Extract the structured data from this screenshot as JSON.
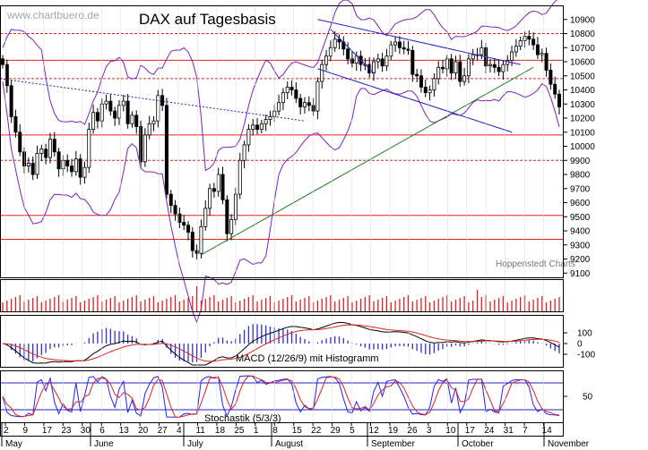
{
  "chart_data": {
    "type": "candlestick",
    "title": "DAX auf Tagesbasis",
    "watermark": "www.chartbuero.de",
    "source": "Hoppenstedt Charts",
    "macd_label": "MACD (12/26/9) mit Histogramm",
    "stoch_label": "Stochastik (5/3/3)",
    "ylim": [
      9070,
      11000
    ],
    "y_ticks": [
      9100,
      9200,
      9300,
      9400,
      9500,
      9600,
      9700,
      9800,
      9900,
      10000,
      10100,
      10200,
      10300,
      10400,
      10500,
      10600,
      10700,
      10800,
      10900
    ],
    "macd_ticks": [
      100,
      0,
      -100
    ],
    "stoch_ticks": [
      50
    ],
    "x_ticks": [
      "2",
      "9",
      "17",
      "23",
      "30",
      "6",
      "13",
      "20",
      "27",
      "4",
      "11",
      "18",
      "25",
      "1",
      "8",
      "15",
      "22",
      "29",
      "5",
      "12",
      "19",
      "26",
      "3",
      "10",
      "17",
      "24",
      "31",
      "7",
      "14"
    ],
    "months": [
      "May",
      "June",
      "July",
      "August",
      "September",
      "October",
      "November"
    ],
    "support_lines": [
      10800,
      10610,
      10480,
      10080,
      9900,
      9510,
      9340
    ],
    "resistance_dashed": [
      10800,
      10480,
      9900
    ],
    "uptrend": {
      "from": [
        9300,
        9230
      ],
      "to": [
        10550,
        10560
      ]
    },
    "dotted_trend": {
      "from": 10480,
      "to": 10180
    },
    "channel_upper": {
      "from": 10900,
      "to": 10580
    },
    "channel_lower": {
      "from": 10550,
      "to": 10100
    },
    "colors": {
      "up": "#ffffff",
      "down": "#000000",
      "support": "#e02020",
      "uptrend": "#208020",
      "channel": "#2020c0",
      "bollinger": "#8020c0",
      "macd": "#000000",
      "signal": "#e02020",
      "stoch_fast": "#2020ff",
      "stoch_slow": "#e02020",
      "volume": "#e02020"
    },
    "closes": [
      10580,
      10430,
      10210,
      10100,
      9960,
      9860,
      9880,
      9800,
      9950,
      9980,
      9920,
      10050,
      9960,
      9840,
      9900,
      9860,
      9820,
      9910,
      9780,
      9850,
      10120,
      10240,
      10180,
      10300,
      10320,
      10250,
      10200,
      10290,
      10320,
      10160,
      10220,
      10140,
      9890,
      10080,
      10160,
      10180,
      10360,
      10290,
      9660,
      9580,
      9520,
      9460,
      9440,
      9390,
      9260,
      9240,
      9430,
      9560,
      9700,
      9680,
      9800,
      9620,
      9380,
      9480,
      9660,
      9900,
      10010,
      10120,
      10150,
      10120,
      10160,
      10190,
      10210,
      10250,
      10310,
      10380,
      10420,
      10400,
      10340,
      10280,
      10310,
      10290,
      10250,
      10460,
      10580,
      10640,
      10700,
      10760,
      10740,
      10690,
      10620,
      10590,
      10640,
      10580,
      10580,
      10520,
      10600,
      10620,
      10570,
      10640,
      10720,
      10740,
      10700,
      10690,
      10680,
      10510,
      10500,
      10420,
      10380,
      10400,
      10480,
      10560,
      10550,
      10620,
      10520,
      10600,
      10460,
      10500,
      10620,
      10650,
      10650,
      10700,
      10570,
      10580,
      10560,
      10530,
      10580,
      10610,
      10670,
      10710,
      10750,
      10780,
      10760,
      10720,
      10650,
      10660,
      10540,
      10440,
      10370,
      10280
    ]
  }
}
